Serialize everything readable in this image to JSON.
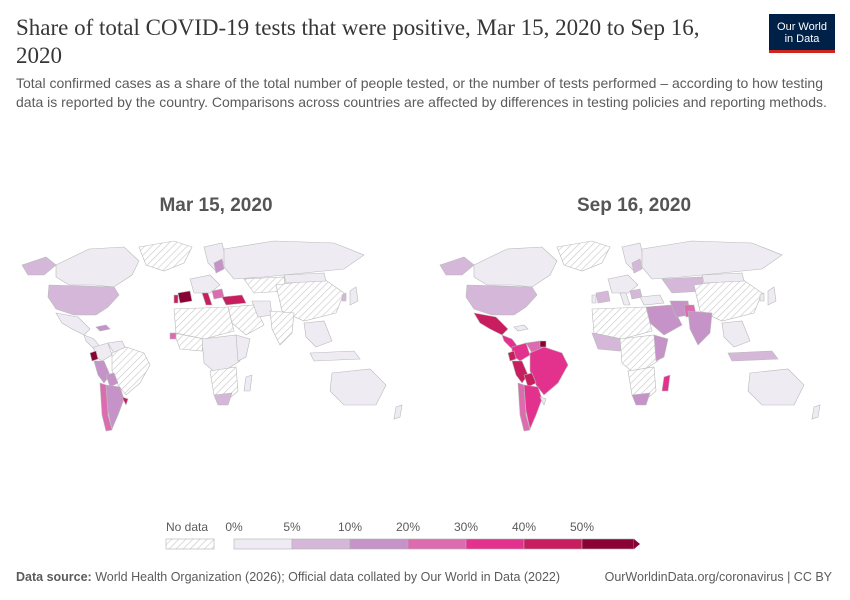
{
  "title": "Share of total COVID-19 tests that were positive, Mar 15, 2020 to Sep 16, 2020",
  "subtitle": "Total confirmed cases as a share of the total number of people tested, or the number of tests performed – according to how testing data is reported by the country. Comparisons across countries are affected by differences in testing policies and reporting methods.",
  "logo": {
    "line1": "Our World",
    "line2": "in Data"
  },
  "maps": [
    {
      "label": "Mar 15, 2020"
    },
    {
      "label": "Sep 16, 2020"
    }
  ],
  "legend": {
    "no_data_label": "No data",
    "tick_labels": [
      "0%",
      "5%",
      "10%",
      "20%",
      "30%",
      "40%",
      "50%"
    ],
    "bin_colors": [
      "#eeebf3",
      "#d5b8d9",
      "#c693c8",
      "#dc6bb0",
      "#e3328e",
      "#c81d5e",
      "#8a0233"
    ]
  },
  "footer": {
    "source_label": "Data source:",
    "source_text": "World Health Organization (2026); Official data collated by Our World in Data (2022)",
    "right_text": "OurWorldinData.org/coronavirus | CC BY"
  }
}
